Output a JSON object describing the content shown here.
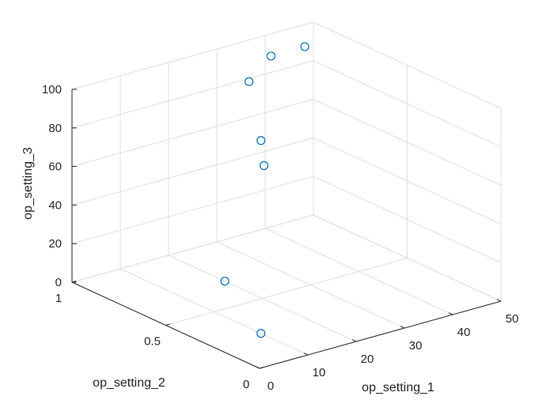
{
  "chart_data": {
    "type": "scatter3",
    "title": "",
    "xlabel": "op_setting_1",
    "ylabel": "op_setting_2",
    "zlabel": "op_setting_3",
    "xlim": [
      0,
      50
    ],
    "ylim": [
      0,
      1
    ],
    "zlim": [
      0,
      100
    ],
    "xticks": [
      "0",
      "10",
      "20",
      "30",
      "40",
      "50"
    ],
    "yticks": [
      "0",
      "0.5",
      "1"
    ],
    "zticks": [
      "0",
      "20",
      "40",
      "60",
      "80",
      "100"
    ],
    "grid": true,
    "marker": "open-circle",
    "marker_color": "#0072bd",
    "points": [
      {
        "x": 42,
        "y": 0.84,
        "z": 100
      },
      {
        "x": 35,
        "y": 0.84,
        "z": 100
      },
      {
        "x": 25,
        "y": 0.7,
        "z": 100
      },
      {
        "x": 25,
        "y": 0.62,
        "z": 60
      },
      {
        "x": 10,
        "y": 0.25,
        "z": 100
      },
      {
        "x": 20,
        "y": 0.7,
        "z": 0
      },
      {
        "x": 10,
        "y": 0.25,
        "z": 0
      }
    ]
  }
}
